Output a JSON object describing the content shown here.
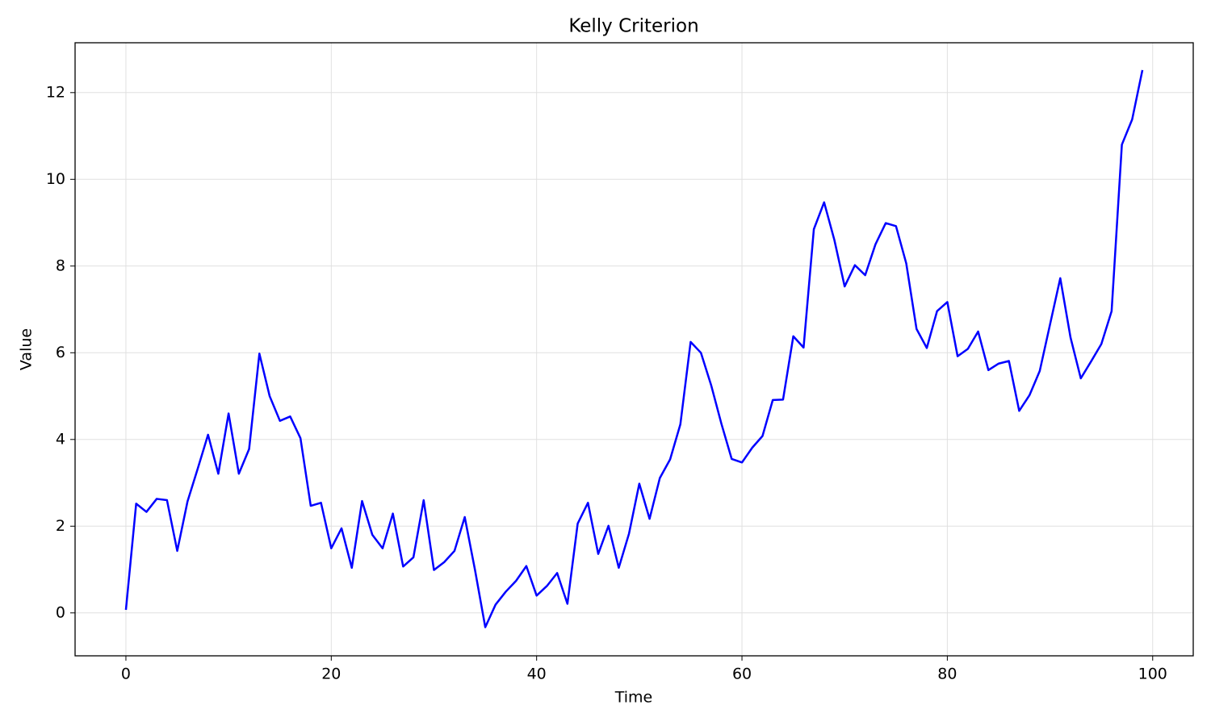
{
  "chart_data": {
    "type": "line",
    "title": "Kelly Criterion",
    "xlabel": "Time",
    "ylabel": "Value",
    "x": [
      0,
      1,
      2,
      3,
      4,
      5,
      6,
      7,
      8,
      9,
      10,
      11,
      12,
      13,
      14,
      15,
      16,
      17,
      18,
      19,
      20,
      21,
      22,
      23,
      24,
      25,
      26,
      27,
      28,
      29,
      30,
      31,
      32,
      33,
      34,
      35,
      36,
      37,
      38,
      39,
      40,
      41,
      42,
      43,
      44,
      45,
      46,
      47,
      48,
      49,
      50,
      51,
      52,
      53,
      54,
      55,
      56,
      57,
      58,
      59,
      60,
      61,
      62,
      63,
      64,
      65,
      66,
      67,
      68,
      69,
      70,
      71,
      72,
      73,
      74,
      75,
      76,
      77,
      78,
      79,
      80,
      81,
      82,
      83,
      84,
      85,
      86,
      87,
      88,
      89,
      90,
      91,
      92,
      93,
      94,
      95,
      96,
      97,
      98,
      99
    ],
    "series": [
      {
        "color": "#0000ff",
        "values": [
          0.07,
          2.52,
          2.33,
          2.63,
          2.6,
          1.43,
          2.57,
          3.33,
          4.11,
          3.21,
          4.6,
          3.21,
          3.78,
          5.98,
          5.0,
          4.43,
          4.53,
          4.03,
          2.47,
          2.54,
          1.49,
          1.95,
          1.04,
          2.58,
          1.8,
          1.49,
          2.29,
          1.07,
          1.28,
          2.6,
          0.99,
          1.17,
          1.43,
          2.21,
          0.99,
          -0.33,
          0.19,
          0.49,
          0.74,
          1.08,
          0.4,
          0.62,
          0.92,
          0.21,
          2.06,
          2.54,
          1.36,
          2.01,
          1.04,
          1.83,
          2.98,
          2.17,
          3.11,
          3.54,
          4.35,
          6.25,
          6.0,
          5.25,
          4.36,
          3.55,
          3.47,
          3.81,
          4.08,
          4.91,
          4.92,
          6.38,
          6.12,
          8.85,
          9.47,
          8.6,
          7.53,
          8.02,
          7.79,
          8.5,
          8.99,
          8.92,
          8.06,
          6.55,
          6.11,
          6.96,
          7.17,
          5.92,
          6.09,
          6.49,
          5.6,
          5.75,
          5.81,
          4.66,
          5.02,
          5.58,
          6.65,
          7.72,
          6.35,
          5.41,
          5.8,
          6.2,
          6.96,
          10.8,
          11.38,
          12.52
        ]
      }
    ],
    "xlim": [
      -4.95,
      103.95
    ],
    "ylim": [
      -0.99,
      13.15
    ],
    "xticks": [
      0,
      20,
      40,
      60,
      80,
      100
    ],
    "yticks": [
      0,
      2,
      4,
      6,
      8,
      10,
      12
    ],
    "grid": true
  }
}
